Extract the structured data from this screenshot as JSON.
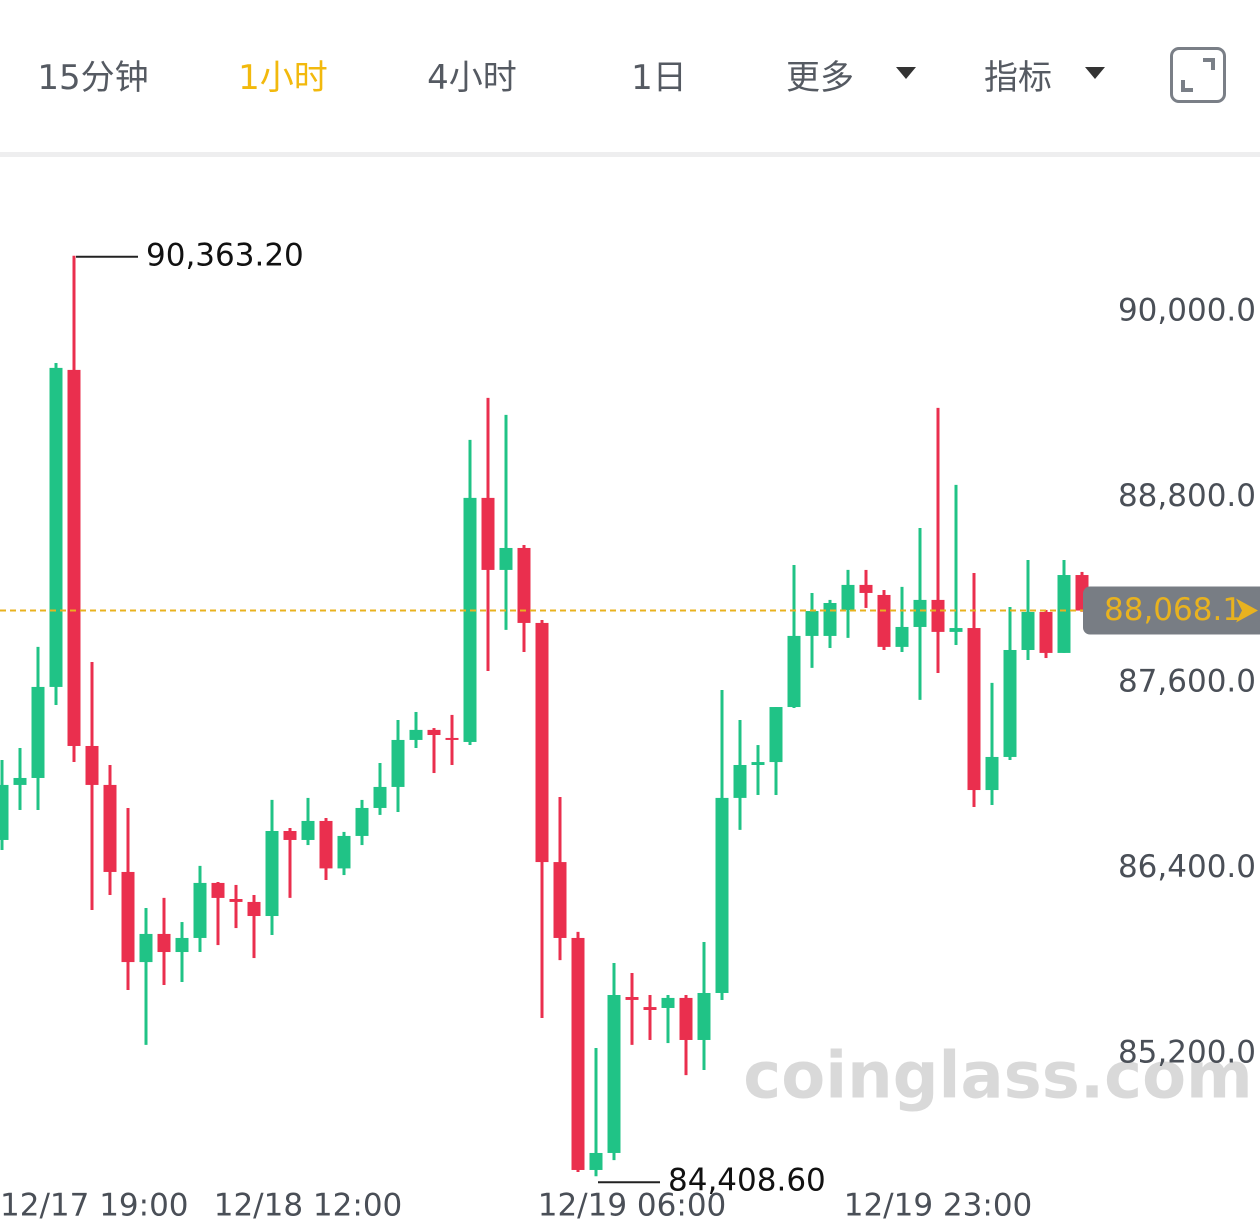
{
  "header": {
    "tabs": [
      "15分钟",
      "1小时",
      "4小时",
      "1日",
      "更多",
      "指标"
    ],
    "active_tab": 1
  },
  "chart_data": {
    "type": "candlestick",
    "watermark": "coinglass.com",
    "up_color": "#20c386",
    "down_color": "#ea2f4e",
    "categories": [
      "12/17 19:00",
      null,
      null,
      null,
      null,
      null,
      null,
      null,
      null,
      null,
      null,
      null,
      null,
      null,
      null,
      null,
      null,
      "12/18 12:00",
      null,
      null,
      null,
      null,
      null,
      null,
      null,
      null,
      null,
      null,
      null,
      null,
      null,
      null,
      null,
      null,
      null,
      "12/19 06:00",
      null,
      null,
      null,
      null,
      null,
      null,
      null,
      null,
      null,
      null,
      null,
      null,
      null,
      null,
      null,
      null,
      "12/19 23:00",
      null,
      null,
      null,
      null,
      null,
      null,
      null,
      null
    ],
    "open": [
      86584,
      86940,
      86985,
      87574,
      89625,
      87192,
      86940,
      86377,
      85794,
      85976,
      85859,
      85950,
      86306,
      86202,
      86183,
      86092,
      86642,
      86584,
      86707,
      86400,
      86610,
      86791,
      86927,
      87231,
      87296,
      87244,
      87218,
      88797,
      88331,
      88473,
      87988,
      86441,
      85950,
      84449,
      84559,
      85568,
      85503,
      85497,
      85562,
      85290,
      85594,
      86856,
      87069,
      87088,
      87444,
      87904,
      87904,
      88072,
      88234,
      88169,
      87833,
      87962,
      88137,
      87930,
      87955,
      86907,
      87121,
      87813,
      88059,
      87794,
      88298
    ],
    "high": [
      87101,
      87179,
      87833,
      89670,
      90363.2,
      87735,
      87069,
      86791,
      86144,
      86209,
      86053,
      86416,
      86312,
      86293,
      86228,
      86843,
      86661,
      86856,
      86726,
      86636,
      86843,
      87082,
      87360,
      87412,
      87308,
      87393,
      89172,
      89444,
      89334,
      88492,
      88007,
      86862,
      85989,
      85238,
      85788,
      85723,
      85581,
      85581,
      85581,
      85924,
      87554,
      87360,
      87198,
      87444,
      88363,
      88182,
      88137,
      88331,
      88331,
      88201,
      88221,
      88602,
      89379,
      88881,
      88311,
      87600,
      88091,
      88395,
      88072,
      88395,
      88318
    ],
    "low": [
      86519,
      86778,
      86778,
      87457,
      87088,
      86131,
      86228,
      85613,
      85258,
      85646,
      85665,
      85859,
      85904,
      86014,
      85820,
      85969,
      86209,
      86551,
      86325,
      86357,
      86551,
      86746,
      86765,
      87179,
      87017,
      87069,
      87198,
      87677,
      87943,
      87800,
      85432,
      85807,
      84436,
      84408.6,
      84513,
      85258,
      85290,
      85270,
      85063,
      85096,
      85549,
      86649,
      86875,
      86875,
      87438,
      87697,
      87826,
      87891,
      88085,
      87813,
      87800,
      87490,
      87664,
      87845,
      86797,
      86810,
      87101,
      87748,
      87761,
      87794,
      88060
    ],
    "close": [
      86940,
      86985,
      87574,
      89638,
      87192,
      86940,
      86377,
      85794,
      85976,
      85859,
      85950,
      86306,
      86209,
      86183,
      86092,
      86642,
      86584,
      86707,
      86400,
      86610,
      86791,
      86927,
      87231,
      87296,
      87263,
      87231,
      88797,
      88331,
      88473,
      87988,
      86441,
      85950,
      84449,
      84559,
      85581,
      85549,
      85484,
      85562,
      85290,
      85594,
      86856,
      87069,
      87088,
      87444,
      87904,
      88065,
      88117,
      88234,
      88182,
      87833,
      87962,
      88137,
      87930,
      87955,
      86907,
      87121,
      87813,
      88059,
      87794,
      88298,
      88068.1
    ],
    "ylim": [
      84093,
      90983
    ],
    "yticks": [
      {
        "value": 90000,
        "label": "90,000.0"
      },
      {
        "value": 88800,
        "label": "88,800.0"
      },
      {
        "value": 87600,
        "label": "87,600.0"
      },
      {
        "value": 86400,
        "label": "86,400.0"
      },
      {
        "value": 85200,
        "label": "85,200.0"
      }
    ],
    "annotations": [
      {
        "value": 90363.2,
        "label": "90,363.20"
      },
      {
        "value": 84408.6,
        "label": "84,408.60"
      }
    ],
    "current_price": {
      "value": 88068.1,
      "label": "88,068.1"
    },
    "current_price_color": "#e8b21f"
  }
}
